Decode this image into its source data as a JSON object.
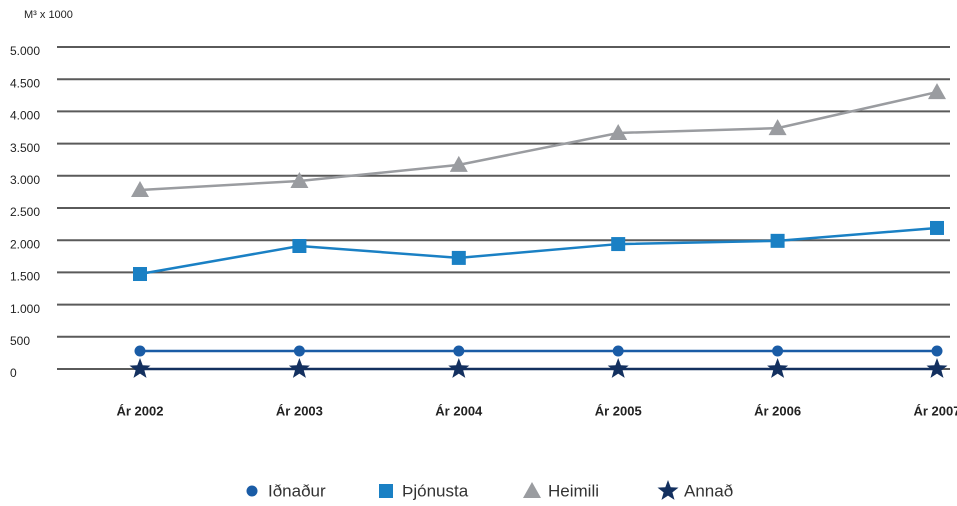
{
  "chart_data": {
    "type": "line",
    "y_label": "M³ x 1000",
    "categories": [
      "Ár 2002",
      "Ár 2003",
      "Ár 2004",
      "Ár 2005",
      "Ár 2006",
      "Ár 2007"
    ],
    "series": [
      {
        "name": "Iðnaður",
        "color": "#1a5ca6",
        "marker": "circle",
        "values": [
          280,
          280,
          280,
          280,
          280,
          280
        ]
      },
      {
        "name": "Þjónusta",
        "color": "#1a80c4",
        "marker": "square",
        "values": [
          1475,
          1910,
          1725,
          1940,
          1990,
          2190
        ]
      },
      {
        "name": "Heimili",
        "color": "#9a9ca0",
        "marker": "triangle",
        "values": [
          2780,
          2920,
          3170,
          3665,
          3740,
          4300
        ]
      },
      {
        "name": "Annað",
        "color": "#13305f",
        "marker": "star",
        "values": [
          0,
          0,
          0,
          0,
          0,
          0
        ]
      }
    ],
    "ylim": [
      0,
      5000
    ],
    "yticks": [
      0,
      500,
      {
        "value": 1000,
        "label": "1.000"
      },
      {
        "value": 1500,
        "label": "1.500"
      },
      {
        "value": 2000,
        "label": "2.000"
      },
      {
        "value": 2500,
        "label": "2.500"
      },
      {
        "value": 3000,
        "label": "3.000"
      },
      {
        "value": 3500,
        "label": "3.500"
      },
      {
        "value": 4000,
        "label": "4.000"
      },
      {
        "value": 4500,
        "label": "4.500"
      },
      {
        "value": 5000,
        "label": "5.000"
      }
    ],
    "grid": true,
    "legend": "bottom"
  }
}
